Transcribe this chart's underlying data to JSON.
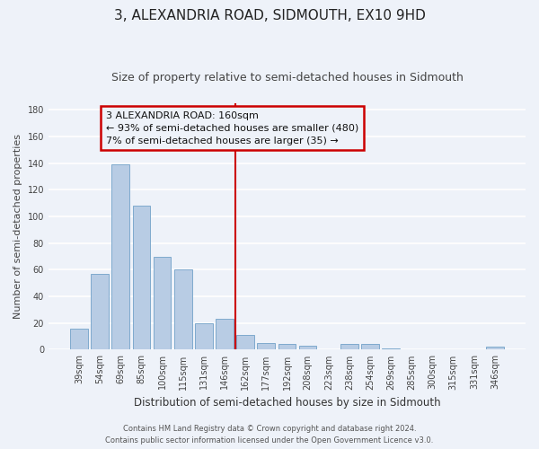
{
  "title": "3, ALEXANDRIA ROAD, SIDMOUTH, EX10 9HD",
  "subtitle": "Size of property relative to semi-detached houses in Sidmouth",
  "xlabel": "Distribution of semi-detached houses by size in Sidmouth",
  "ylabel": "Number of semi-detached properties",
  "categories": [
    "39sqm",
    "54sqm",
    "69sqm",
    "85sqm",
    "100sqm",
    "115sqm",
    "131sqm",
    "146sqm",
    "162sqm",
    "177sqm",
    "192sqm",
    "208sqm",
    "223sqm",
    "238sqm",
    "254sqm",
    "269sqm",
    "285sqm",
    "300sqm",
    "315sqm",
    "331sqm",
    "346sqm"
  ],
  "values": [
    16,
    57,
    139,
    108,
    70,
    60,
    20,
    23,
    11,
    5,
    4,
    3,
    0,
    4,
    4,
    1,
    0,
    0,
    0,
    0,
    2
  ],
  "bar_color": "#b8cce4",
  "bar_edgecolor": "#7faacd",
  "annotation_text": "3 ALEXANDRIA ROAD: 160sqm\n← 93% of semi-detached houses are smaller (480)\n7% of semi-detached houses are larger (35) →",
  "annotation_box_color": "#cc0000",
  "ylim": [
    0,
    185
  ],
  "yticks": [
    0,
    20,
    40,
    60,
    80,
    100,
    120,
    140,
    160,
    180
  ],
  "background_color": "#eef2f9",
  "grid_color": "#ffffff",
  "footer_line1": "Contains HM Land Registry data © Crown copyright and database right 2024.",
  "footer_line2": "Contains public sector information licensed under the Open Government Licence v3.0.",
  "title_fontsize": 11,
  "subtitle_fontsize": 9,
  "xlabel_fontsize": 8.5,
  "ylabel_fontsize": 8,
  "tick_fontsize": 7,
  "annotation_fontsize": 8,
  "footer_fontsize": 6
}
